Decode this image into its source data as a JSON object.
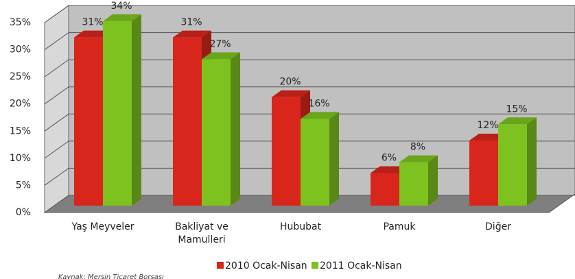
{
  "chart_data": {
    "type": "bar3d",
    "categories": [
      "Yaş Meyveler",
      "Bakliyat ve Mamulleri",
      "Hububat",
      "Pamuk",
      "Diğer"
    ],
    "series": [
      {
        "name": "2010 Ocak-Nisan",
        "color": "#d9261c",
        "values": [
          31,
          31,
          20,
          6,
          12
        ],
        "value_labels": [
          "31%",
          "31%",
          "20%",
          "6%",
          "12%"
        ]
      },
      {
        "name": "2011 Ocak-Nisan",
        "color": "#7dc21e",
        "values": [
          34,
          27,
          16,
          8,
          15
        ],
        "value_labels": [
          "34%",
          "27%",
          "16%",
          "8%",
          "15%"
        ]
      }
    ],
    "ylim": [
      0,
      35
    ],
    "yticks": [
      {
        "value": 0,
        "label": "0%"
      },
      {
        "value": 5,
        "label": "5%"
      },
      {
        "value": 10,
        "label": "10%"
      },
      {
        "value": 15,
        "label": "15%"
      },
      {
        "value": 20,
        "label": "20%"
      },
      {
        "value": 25,
        "label": "25%"
      },
      {
        "value": 30,
        "label": "30%"
      },
      {
        "value": 35,
        "label": "35%"
      }
    ],
    "grid": true,
    "source": "Kaynak: Mersin Ticaret Borsası"
  }
}
